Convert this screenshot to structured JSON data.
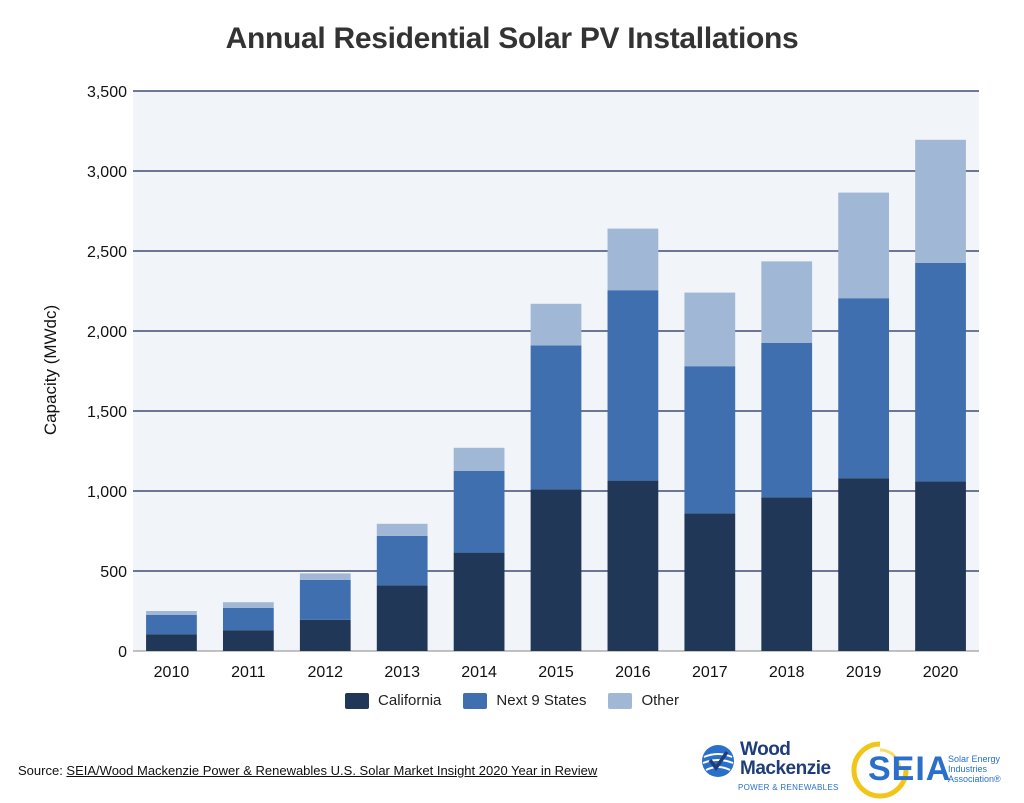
{
  "chart_data": {
    "type": "bar",
    "stacked": true,
    "title": "Annual Residential Solar PV Installations",
    "xlabel": "",
    "ylabel": "Capacity (MWdc)",
    "ylim": [
      0,
      3500
    ],
    "yticks": [
      0,
      500,
      1000,
      1500,
      2000,
      2500,
      3000,
      3500
    ],
    "ytick_labels": [
      "0",
      "500",
      "1,000",
      "1,500",
      "2,000",
      "2,500",
      "3,000",
      "3,500"
    ],
    "grid": true,
    "legend_position": "bottom",
    "categories": [
      "2010",
      "2011",
      "2012",
      "2013",
      "2014",
      "2015",
      "2016",
      "2017",
      "2018",
      "2019",
      "2020"
    ],
    "series": [
      {
        "name": "California",
        "color": "#213757",
        "values": [
          105,
          130,
          195,
          410,
          615,
          1010,
          1065,
          860,
          960,
          1080,
          1060
        ]
      },
      {
        "name": "Next 9 States",
        "color": "#3f6fae",
        "values": [
          120,
          140,
          250,
          310,
          510,
          900,
          1190,
          920,
          965,
          1125,
          1365
        ]
      },
      {
        "name": "Other",
        "color": "#a0b8d6",
        "values": [
          25,
          35,
          40,
          75,
          145,
          260,
          385,
          460,
          510,
          660,
          770
        ]
      }
    ]
  },
  "source": {
    "prefix": "Source: ",
    "link_text": "SEIA/Wood Mackenzie Power & Renewables U.S. Solar Market Insight 2020 Year in Review"
  },
  "logos": {
    "wood_mackenzie": {
      "name_line1": "Wood",
      "name_line2": "Mackenzie",
      "sub": "POWER & RENEWABLES",
      "icon": "globe-check-icon"
    },
    "seia": {
      "word": "SEIA",
      "full_line1": "Solar Energy",
      "full_line2": "Industries",
      "full_line3": "Association®",
      "icon": "sun-ring-icon"
    }
  },
  "colors": {
    "plot_background": "#f1f4f8",
    "gridline": "#1f2a55"
  }
}
